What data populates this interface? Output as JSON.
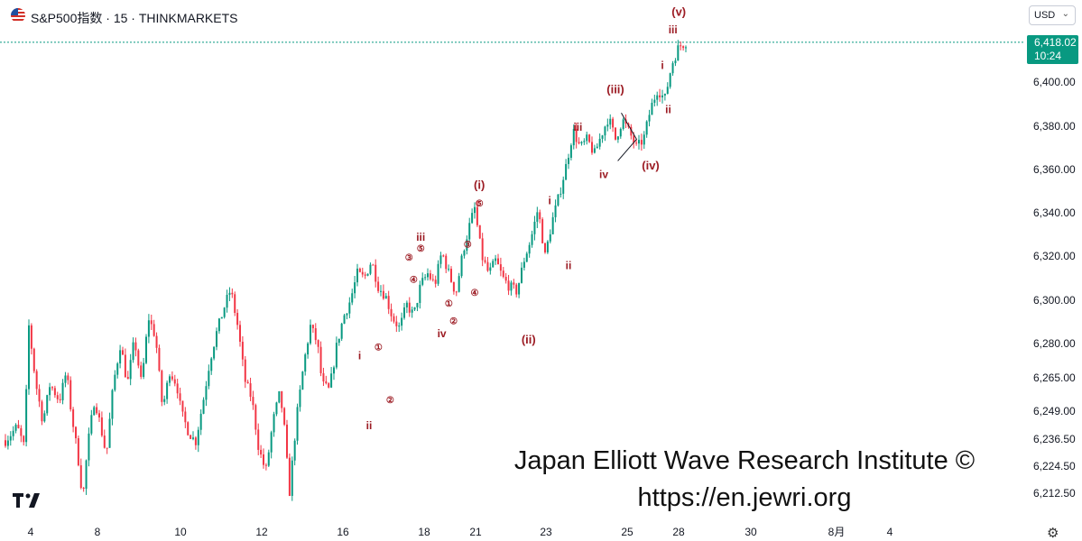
{
  "header": {
    "title": "S&P500指数 · 15 · THINKMARKETS",
    "flag_icon": "us-flag-icon"
  },
  "currency_selector": {
    "label": "USD"
  },
  "last_price": {
    "value": "6,418.02",
    "countdown": "10:24",
    "color": "#089981"
  },
  "watermark": {
    "line1": "Japan Elliott Wave Research Institute ©",
    "line2": "https://en.jewri.org"
  },
  "icons": {
    "logo": "tradingview-logo-icon",
    "settings": "gear-icon"
  },
  "colors": {
    "up": "#089981",
    "down": "#f23645",
    "wave_label": "#9c1c24",
    "price_line": "#089981"
  },
  "chart_data": {
    "type": "candlestick",
    "symbol": "S&P500指数",
    "timeframe": "15",
    "exchange": "THINKMARKETS",
    "y_ticks": [
      "6,212.50",
      "6,224.50",
      "6,236.50",
      "6,249.00",
      "6,265.00",
      "6,280.00",
      "6,300.00",
      "6,320.00",
      "6,340.00",
      "6,360.00",
      "6,380.00",
      "6,400.00"
    ],
    "x_ticks": [
      "4",
      "8",
      "10",
      "12",
      "16",
      "18",
      "21",
      "23",
      "25",
      "28",
      "30",
      "8月",
      "4"
    ],
    "last_price": 6418.02,
    "path_points": [
      [
        0,
        6236
      ],
      [
        0.5,
        6242
      ],
      [
        0.8,
        6233
      ],
      [
        1.0,
        6288
      ],
      [
        1.3,
        6262
      ],
      [
        1.6,
        6244
      ],
      [
        1.9,
        6262
      ],
      [
        2.3,
        6254
      ],
      [
        2.6,
        6268
      ],
      [
        2.8,
        6249
      ],
      [
        3.1,
        6228
      ],
      [
        3.3,
        6210
      ],
      [
        3.5,
        6233
      ],
      [
        3.8,
        6255
      ],
      [
        4.1,
        6240
      ],
      [
        4.3,
        6229
      ],
      [
        4.6,
        6262
      ],
      [
        4.9,
        6280
      ],
      [
        5.2,
        6262
      ],
      [
        5.5,
        6282
      ],
      [
        5.8,
        6262
      ],
      [
        6.1,
        6292
      ],
      [
        6.4,
        6283
      ],
      [
        6.7,
        6250
      ],
      [
        7.0,
        6268
      ],
      [
        7.3,
        6262
      ],
      [
        7.5,
        6248
      ],
      [
        7.8,
        6240
      ],
      [
        8.1,
        6235
      ],
      [
        8.4,
        6252
      ],
      [
        8.7,
        6272
      ],
      [
        9.0,
        6285
      ],
      [
        9.3,
        6296
      ],
      [
        9.6,
        6305
      ],
      [
        9.9,
        6288
      ],
      [
        10.2,
        6264
      ],
      [
        10.5,
        6255
      ],
      [
        10.8,
        6232
      ],
      [
        11.1,
        6222
      ],
      [
        11.4,
        6244
      ],
      [
        11.7,
        6258
      ],
      [
        11.9,
        6240
      ],
      [
        12.1,
        6212
      ],
      [
        12.4,
        6245
      ],
      [
        12.7,
        6270
      ],
      [
        13.0,
        6288
      ],
      [
        13.3,
        6280
      ],
      [
        13.5,
        6262
      ],
      [
        13.8,
        6259
      ],
      [
        14.1,
        6278
      ],
      [
        14.4,
        6292
      ],
      [
        14.7,
        6300
      ],
      [
        15.0,
        6312
      ],
      [
        15.3,
        6310
      ],
      [
        15.6,
        6318
      ],
      [
        15.9,
        6306
      ],
      [
        16.2,
        6302
      ],
      [
        16.5,
        6292
      ],
      [
        16.8,
        6287
      ],
      [
        17.1,
        6298
      ],
      [
        17.4,
        6293
      ],
      [
        17.7,
        6307
      ],
      [
        18.0,
        6312
      ],
      [
        18.3,
        6307
      ],
      [
        18.6,
        6322
      ],
      [
        18.9,
        6312
      ],
      [
        19.2,
        6303
      ],
      [
        19.5,
        6322
      ],
      [
        19.8,
        6335
      ],
      [
        20.0,
        6342
      ],
      [
        20.3,
        6320
      ],
      [
        20.6,
        6312
      ],
      [
        20.9,
        6318
      ],
      [
        21.2,
        6310
      ],
      [
        21.5,
        6306
      ],
      [
        21.8,
        6304
      ],
      [
        22.1,
        6318
      ],
      [
        22.4,
        6328
      ],
      [
        22.7,
        6342
      ],
      [
        23.0,
        6320
      ],
      [
        23.3,
        6336
      ],
      [
        23.6,
        6348
      ],
      [
        23.9,
        6362
      ],
      [
        24.2,
        6378
      ],
      [
        24.5,
        6370
      ],
      [
        24.8,
        6374
      ],
      [
        25.1,
        6367
      ],
      [
        25.4,
        6376
      ],
      [
        25.7,
        6384
      ],
      [
        26.0,
        6374
      ],
      [
        26.3,
        6383
      ],
      [
        26.6,
        6377
      ],
      [
        26.9,
        6370
      ],
      [
        27.2,
        6374
      ],
      [
        27.5,
        6388
      ],
      [
        27.8,
        6397
      ],
      [
        28.1,
        6392
      ],
      [
        28.4,
        6408
      ],
      [
        28.7,
        6416
      ],
      [
        29.0,
        6418.02
      ]
    ],
    "overlays": [
      {
        "type": "triangle",
        "points": [
          [
            26.25,
            6386
          ],
          [
            26.9,
            6374
          ],
          [
            26.1,
            6364
          ]
        ]
      }
    ],
    "annotations": [
      {
        "text": "(v)",
        "x": 28.7,
        "y": 6430,
        "size": 13
      },
      {
        "text": "iii",
        "x": 28.45,
        "y": 6422,
        "size": 12
      },
      {
        "text": "i",
        "x": 28.0,
        "y": 6406,
        "size": 12
      },
      {
        "text": "ii",
        "x": 28.25,
        "y": 6386,
        "size": 12
      },
      {
        "text": "(iii)",
        "x": 26.0,
        "y": 6395,
        "size": 13
      },
      {
        "text": "(iv)",
        "x": 27.5,
        "y": 6360,
        "size": 13
      },
      {
        "text": "iii",
        "x": 24.4,
        "y": 6378,
        "size": 12
      },
      {
        "text": "iv",
        "x": 25.5,
        "y": 6356,
        "size": 12
      },
      {
        "text": "i",
        "x": 23.2,
        "y": 6344,
        "size": 12
      },
      {
        "text": "ii",
        "x": 24.0,
        "y": 6314,
        "size": 12
      },
      {
        "text": "(i)",
        "x": 20.2,
        "y": 6351,
        "size": 13
      },
      {
        "text": "⑤",
        "x": 20.2,
        "y": 6343,
        "size": 10
      },
      {
        "text": "③",
        "x": 19.7,
        "y": 6324,
        "size": 10
      },
      {
        "text": "④",
        "x": 20.0,
        "y": 6302,
        "size": 10
      },
      {
        "text": "(ii)",
        "x": 22.3,
        "y": 6280,
        "size": 13
      },
      {
        "text": "iii",
        "x": 17.7,
        "y": 6327,
        "size": 12
      },
      {
        "text": "⑤",
        "x": 17.7,
        "y": 6322,
        "size": 10
      },
      {
        "text": "③",
        "x": 17.2,
        "y": 6318,
        "size": 10
      },
      {
        "text": "④",
        "x": 17.4,
        "y": 6308,
        "size": 10
      },
      {
        "text": "①",
        "x": 18.9,
        "y": 6297,
        "size": 10
      },
      {
        "text": "②",
        "x": 19.1,
        "y": 6289,
        "size": 10
      },
      {
        "text": "iv",
        "x": 18.6,
        "y": 6283,
        "size": 12
      },
      {
        "text": "i",
        "x": 15.1,
        "y": 6273,
        "size": 12
      },
      {
        "text": "①",
        "x": 15.9,
        "y": 6277,
        "size": 10
      },
      {
        "text": "②",
        "x": 16.4,
        "y": 6253,
        "size": 10
      },
      {
        "text": "ii",
        "x": 15.5,
        "y": 6241,
        "size": 12
      }
    ],
    "grid": false,
    "legend": "none"
  }
}
